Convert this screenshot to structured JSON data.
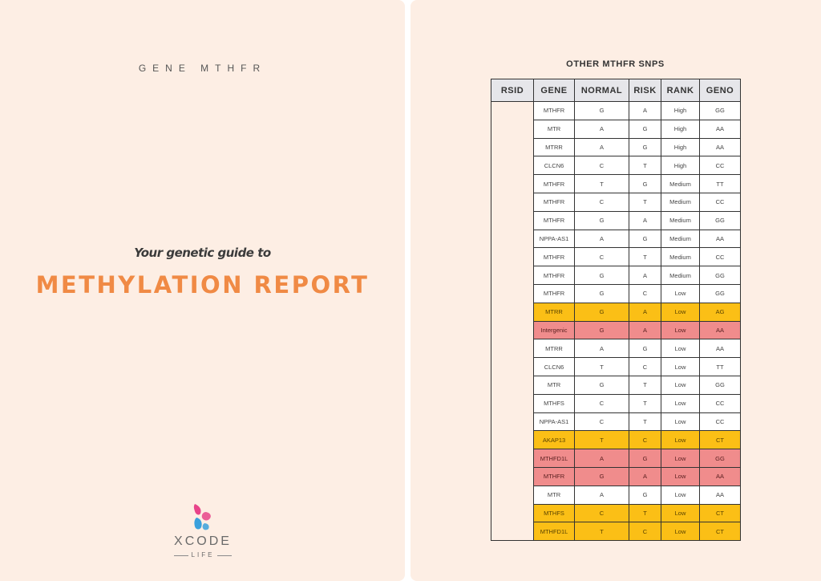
{
  "cover": {
    "subtitle": "GENE MTHFR",
    "tagline": "Your genetic guide to",
    "title": "METHYLATION REPORT",
    "logo": {
      "name": "XCODE",
      "sub": "LIFE",
      "colors": [
        "#e8448a",
        "#3aa0dc"
      ]
    }
  },
  "table": {
    "title": "OTHER MTHFR SNPS",
    "headers": [
      "RSID",
      "GENE",
      "NORMAL",
      "RISK",
      "RANK",
      "GENO"
    ],
    "rows": [
      {
        "gene": "MTHFR",
        "normal": "G",
        "risk": "A",
        "rank": "High",
        "geno": "GG",
        "highlight": "none"
      },
      {
        "gene": "MTR",
        "normal": "A",
        "risk": "G",
        "rank": "High",
        "geno": "AA",
        "highlight": "none"
      },
      {
        "gene": "MTRR",
        "normal": "A",
        "risk": "G",
        "rank": "High",
        "geno": "AA",
        "highlight": "none"
      },
      {
        "gene": "CLCN6",
        "normal": "C",
        "risk": "T",
        "rank": "High",
        "geno": "CC",
        "highlight": "none"
      },
      {
        "gene": "MTHFR",
        "normal": "T",
        "risk": "G",
        "rank": "Medium",
        "geno": "TT",
        "highlight": "none"
      },
      {
        "gene": "MTHFR",
        "normal": "C",
        "risk": "T",
        "rank": "Medium",
        "geno": "CC",
        "highlight": "none"
      },
      {
        "gene": "MTHFR",
        "normal": "G",
        "risk": "A",
        "rank": "Medium",
        "geno": "GG",
        "highlight": "none"
      },
      {
        "gene": "NPPA-AS1",
        "normal": "A",
        "risk": "G",
        "rank": "Medium",
        "geno": "AA",
        "highlight": "none"
      },
      {
        "gene": "MTHFR",
        "normal": "C",
        "risk": "T",
        "rank": "Medium",
        "geno": "CC",
        "highlight": "none"
      },
      {
        "gene": "MTHFR",
        "normal": "G",
        "risk": "A",
        "rank": "Medium",
        "geno": "GG",
        "highlight": "none"
      },
      {
        "gene": "MTHFR",
        "normal": "G",
        "risk": "C",
        "rank": "Low",
        "geno": "GG",
        "highlight": "none"
      },
      {
        "gene": "MTRR",
        "normal": "G",
        "risk": "A",
        "rank": "Low",
        "geno": "AG",
        "highlight": "yellow"
      },
      {
        "gene": "Intergenic",
        "normal": "G",
        "risk": "A",
        "rank": "Low",
        "geno": "AA",
        "highlight": "red"
      },
      {
        "gene": "MTRR",
        "normal": "A",
        "risk": "G",
        "rank": "Low",
        "geno": "AA",
        "highlight": "none"
      },
      {
        "gene": "CLCN6",
        "normal": "T",
        "risk": "C",
        "rank": "Low",
        "geno": "TT",
        "highlight": "none"
      },
      {
        "gene": "MTR",
        "normal": "G",
        "risk": "T",
        "rank": "Low",
        "geno": "GG",
        "highlight": "none"
      },
      {
        "gene": "MTHFS",
        "normal": "C",
        "risk": "T",
        "rank": "Low",
        "geno": "CC",
        "highlight": "none"
      },
      {
        "gene": "NPPA-AS1",
        "normal": "C",
        "risk": "T",
        "rank": "Low",
        "geno": "CC",
        "highlight": "none"
      },
      {
        "gene": "AKAP13",
        "normal": "T",
        "risk": "C",
        "rank": "Low",
        "geno": "CT",
        "highlight": "yellow"
      },
      {
        "gene": "MTHFD1L",
        "normal": "A",
        "risk": "G",
        "rank": "Low",
        "geno": "GG",
        "highlight": "red"
      },
      {
        "gene": "MTHFR",
        "normal": "G",
        "risk": "A",
        "rank": "Low",
        "geno": "AA",
        "highlight": "red"
      },
      {
        "gene": "MTR",
        "normal": "A",
        "risk": "G",
        "rank": "Low",
        "geno": "AA",
        "highlight": "none"
      },
      {
        "gene": "MTHFS",
        "normal": "C",
        "risk": "T",
        "rank": "Low",
        "geno": "CT",
        "highlight": "yellow"
      },
      {
        "gene": "MTHFD1L",
        "normal": "T",
        "risk": "C",
        "rank": "Low",
        "geno": "CT",
        "highlight": "yellow"
      }
    ]
  }
}
